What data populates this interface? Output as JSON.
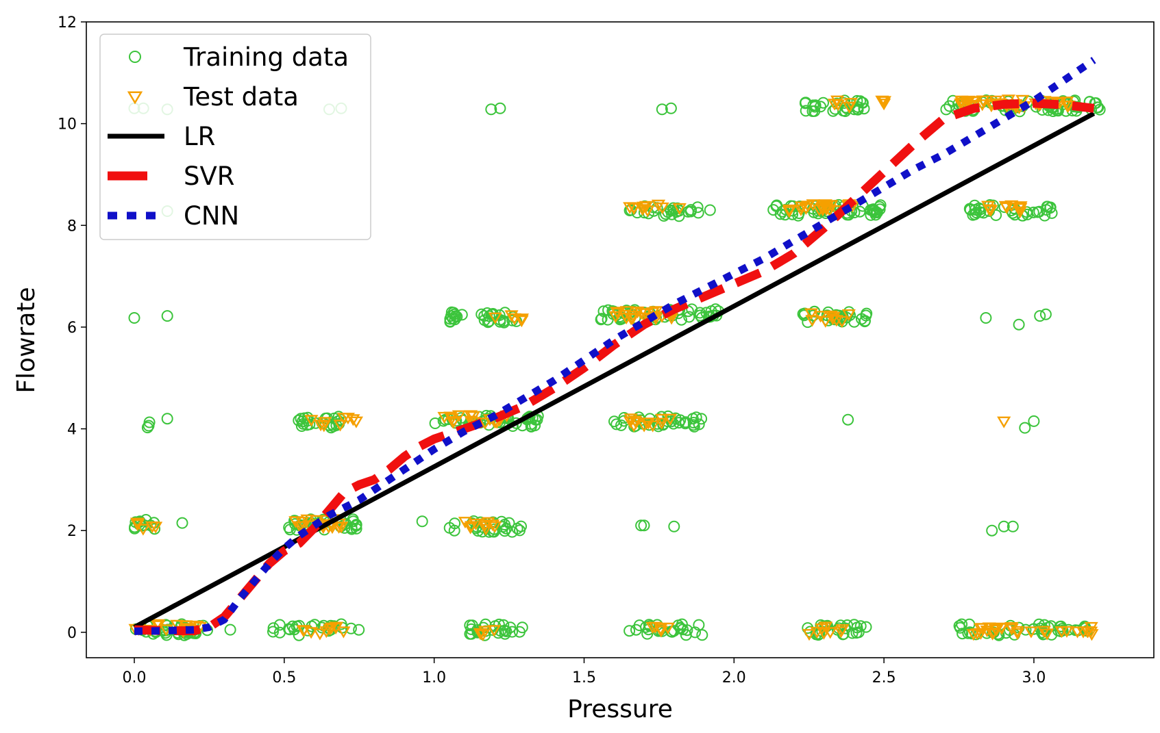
{
  "chart_data": {
    "type": "scatter",
    "title": "",
    "xlabel": "Pressure",
    "ylabel": "Flowrate",
    "xlim": [
      -0.16,
      3.4
    ],
    "ylim": [
      -0.5,
      12
    ],
    "xticks": [
      "0.0",
      "0.5",
      "1.0",
      "1.5",
      "2.0",
      "2.5",
      "3.0"
    ],
    "yticks": [
      "0",
      "2",
      "4",
      "6",
      "8",
      "10",
      "12"
    ],
    "grid": false,
    "legend_position": "top-left",
    "colors": {
      "training": "#3cc43c",
      "test": "#f5a000",
      "lr": "#000000",
      "svr": "#f01010",
      "cnn": "#1010c8"
    },
    "clusters_training": [
      {
        "x": [
          0.0,
          0.25
        ],
        "y": 0.05,
        "n": 40
      },
      {
        "x": [
          0.46,
          0.75
        ],
        "y": 0.05,
        "n": 25
      },
      {
        "x": [
          1.1,
          1.3
        ],
        "y": 0.05,
        "n": 25
      },
      {
        "x": [
          1.64,
          1.9
        ],
        "y": 0.05,
        "n": 25
      },
      {
        "x": [
          2.24,
          2.46
        ],
        "y": 0.05,
        "n": 25
      },
      {
        "x": [
          2.74,
          3.18
        ],
        "y": 0.05,
        "n": 45
      },
      {
        "x": [
          0.0,
          0.08
        ],
        "y": 2.12,
        "n": 12
      },
      {
        "x": [
          0.5,
          0.75
        ],
        "y": 2.12,
        "n": 35
      },
      {
        "x": [
          1.05,
          1.3
        ],
        "y": 2.08,
        "n": 28
      },
      {
        "x": [
          0.0,
          0.08
        ],
        "y": 4.13,
        "n": 3
      },
      {
        "x": [
          0.53,
          0.7
        ],
        "y": 4.13,
        "n": 25
      },
      {
        "x": [
          1.0,
          1.35
        ],
        "y": 4.15,
        "n": 45
      },
      {
        "x": [
          1.6,
          1.9
        ],
        "y": 4.15,
        "n": 35
      },
      {
        "x": [
          1.05,
          1.3
        ],
        "y": 6.2,
        "n": 30
      },
      {
        "x": [
          1.55,
          1.95
        ],
        "y": 6.25,
        "n": 55
      },
      {
        "x": [
          2.22,
          2.45
        ],
        "y": 6.2,
        "n": 30
      },
      {
        "x": [
          1.65,
          1.9
        ],
        "y": 8.28,
        "n": 25
      },
      {
        "x": [
          2.13,
          2.5
        ],
        "y": 8.3,
        "n": 55
      },
      {
        "x": [
          2.78,
          3.07
        ],
        "y": 8.3,
        "n": 35
      },
      {
        "x": [
          2.23,
          2.45
        ],
        "y": 10.35,
        "n": 30
      },
      {
        "x": [
          2.7,
          3.22
        ],
        "y": 10.35,
        "n": 70
      }
    ],
    "clusters_test": [
      {
        "x": [
          0.0,
          0.22
        ],
        "y": 0.1,
        "n": 16
      },
      {
        "x": [
          0.55,
          0.7
        ],
        "y": 0.05,
        "n": 10
      },
      {
        "x": [
          1.1,
          1.2
        ],
        "y": 0.0,
        "n": 5
      },
      {
        "x": [
          1.7,
          1.8
        ],
        "y": 0.05,
        "n": 5
      },
      {
        "x": [
          2.25,
          2.4
        ],
        "y": 0.05,
        "n": 8
      },
      {
        "x": [
          2.75,
          3.2
        ],
        "y": 0.05,
        "n": 28
      },
      {
        "x": [
          0.0,
          0.08
        ],
        "y": 2.1,
        "n": 6
      },
      {
        "x": [
          0.53,
          0.7
        ],
        "y": 2.15,
        "n": 18
      },
      {
        "x": [
          1.08,
          1.22
        ],
        "y": 2.1,
        "n": 10
      },
      {
        "x": [
          0.58,
          0.74
        ],
        "y": 4.15,
        "n": 8
      },
      {
        "x": [
          1.02,
          1.25
        ],
        "y": 4.2,
        "n": 16
      },
      {
        "x": [
          1.65,
          1.8
        ],
        "y": 4.15,
        "n": 12
      },
      {
        "x": [
          1.18,
          1.3
        ],
        "y": 6.17,
        "n": 5
      },
      {
        "x": [
          1.58,
          1.8
        ],
        "y": 6.25,
        "n": 25
      },
      {
        "x": [
          2.25,
          2.4
        ],
        "y": 6.2,
        "n": 10
      },
      {
        "x": [
          1.65,
          1.85
        ],
        "y": 8.35,
        "n": 10
      },
      {
        "x": [
          2.18,
          2.4
        ],
        "y": 8.35,
        "n": 22
      },
      {
        "x": [
          2.83,
          2.98
        ],
        "y": 8.35,
        "n": 10
      },
      {
        "x": [
          2.28,
          2.52
        ],
        "y": 10.4,
        "n": 8
      },
      {
        "x": [
          2.75,
          3.12
        ],
        "y": 10.4,
        "n": 40
      }
    ],
    "outliers_training": [
      {
        "x": 0.0,
        "y": 10.3
      },
      {
        "x": 0.03,
        "y": 10.3
      },
      {
        "x": 0.11,
        "y": 10.28
      },
      {
        "x": 0.65,
        "y": 10.28
      },
      {
        "x": 0.69,
        "y": 10.3
      },
      {
        "x": 1.19,
        "y": 10.28
      },
      {
        "x": 1.22,
        "y": 10.3
      },
      {
        "x": 1.76,
        "y": 10.28
      },
      {
        "x": 1.79,
        "y": 10.3
      },
      {
        "x": 0.11,
        "y": 8.28
      },
      {
        "x": 1.92,
        "y": 8.3
      },
      {
        "x": 0.0,
        "y": 6.18
      },
      {
        "x": 0.11,
        "y": 6.22
      },
      {
        "x": 2.84,
        "y": 6.18
      },
      {
        "x": 2.95,
        "y": 6.05
      },
      {
        "x": 3.02,
        "y": 6.22
      },
      {
        "x": 3.04,
        "y": 6.25
      },
      {
        "x": 0.11,
        "y": 4.2
      },
      {
        "x": 2.38,
        "y": 4.18
      },
      {
        "x": 2.97,
        "y": 4.02
      },
      {
        "x": 3.0,
        "y": 4.15
      },
      {
        "x": 0.16,
        "y": 2.15
      },
      {
        "x": 0.96,
        "y": 2.18
      },
      {
        "x": 1.69,
        "y": 2.1
      },
      {
        "x": 1.7,
        "y": 2.1
      },
      {
        "x": 1.8,
        "y": 2.08
      },
      {
        "x": 2.86,
        "y": 2.0
      },
      {
        "x": 2.9,
        "y": 2.08
      },
      {
        "x": 2.93,
        "y": 2.08
      },
      {
        "x": 0.32,
        "y": 0.05
      }
    ],
    "outliers_test": [
      {
        "x": 0.74,
        "y": 4.15
      },
      {
        "x": 1.29,
        "y": 6.15
      },
      {
        "x": 2.5,
        "y": 10.4
      },
      {
        "x": 2.9,
        "y": 4.15
      },
      {
        "x": 3.19,
        "y": 0.02
      }
    ],
    "series": [
      {
        "name": "LR",
        "x": [
          0.0,
          3.2
        ],
        "y": [
          0.1,
          10.2
        ]
      },
      {
        "name": "SVR",
        "x": [
          0.0,
          0.1,
          0.2,
          0.25,
          0.3,
          0.35,
          0.4,
          0.45,
          0.5,
          0.55,
          0.6,
          0.65,
          0.7,
          0.75,
          0.8,
          0.85,
          0.9,
          0.95,
          1.0,
          1.1,
          1.2,
          1.3,
          1.4,
          1.5,
          1.6,
          1.7,
          1.8,
          1.9,
          2.0,
          2.1,
          2.2,
          2.3,
          2.4,
          2.5,
          2.6,
          2.7,
          2.8,
          2.9,
          3.0,
          3.1,
          3.2
        ],
        "y": [
          0.05,
          0.03,
          0.03,
          0.1,
          0.3,
          0.65,
          1.0,
          1.35,
          1.6,
          1.75,
          2.05,
          2.4,
          2.75,
          2.9,
          3.0,
          3.2,
          3.45,
          3.65,
          3.8,
          4.0,
          4.2,
          4.45,
          4.8,
          5.2,
          5.65,
          6.05,
          6.35,
          6.6,
          6.85,
          7.1,
          7.45,
          7.95,
          8.5,
          9.05,
          9.6,
          10.1,
          10.3,
          10.38,
          10.4,
          10.37,
          10.3
        ]
      },
      {
        "name": "CNN",
        "x": [
          0.0,
          0.1,
          0.2,
          0.25,
          0.3,
          0.35,
          0.4,
          0.45,
          0.5,
          0.55,
          0.6,
          0.65,
          0.7,
          0.75,
          0.8,
          0.9,
          1.0,
          1.1,
          1.2,
          1.3,
          1.4,
          1.5,
          1.6,
          1.7,
          1.8,
          1.9,
          2.0,
          2.1,
          2.2,
          2.3,
          2.4,
          2.5,
          2.6,
          2.7,
          2.8,
          2.9,
          3.0,
          3.1,
          3.2
        ],
        "y": [
          0.02,
          0.03,
          0.05,
          0.1,
          0.25,
          0.65,
          1.0,
          1.35,
          1.65,
          1.9,
          2.1,
          2.3,
          2.45,
          2.6,
          2.8,
          3.2,
          3.6,
          3.95,
          4.25,
          4.6,
          4.95,
          5.35,
          5.75,
          6.1,
          6.45,
          6.75,
          7.05,
          7.35,
          7.7,
          8.05,
          8.4,
          8.75,
          9.1,
          9.4,
          9.75,
          10.1,
          10.45,
          10.85,
          11.25
        ]
      }
    ],
    "legend": [
      {
        "key": "training",
        "label": "Training data"
      },
      {
        "key": "test",
        "label": "Test data"
      },
      {
        "key": "lr",
        "label": "LR"
      },
      {
        "key": "svr",
        "label": "SVR"
      },
      {
        "key": "cnn",
        "label": "CNN"
      }
    ]
  }
}
